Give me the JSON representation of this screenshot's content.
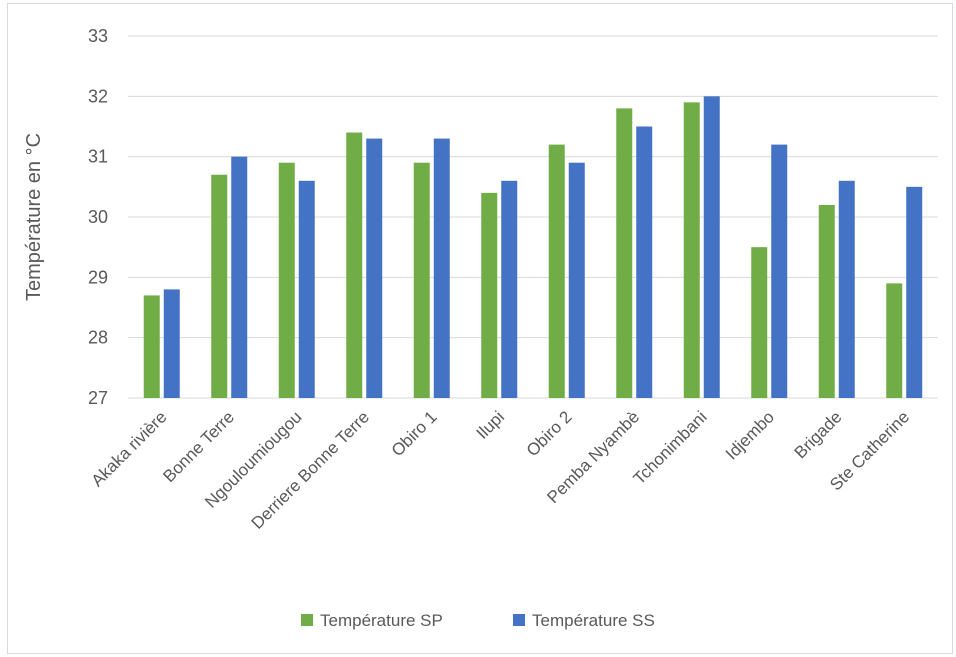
{
  "chart_data": {
    "type": "bar",
    "title": "",
    "xlabel": "",
    "ylabel": "Température en °C",
    "ylim": [
      27,
      33
    ],
    "yticks": [
      27,
      28,
      29,
      30,
      31,
      32,
      33
    ],
    "grid": true,
    "legend_position": "bottom",
    "categories": [
      "Akaka rivière",
      "Bonne Terre",
      "Ngouloumiougou",
      "Derriere Bonne Terre",
      "Obiro 1",
      "Ilupi",
      "Obiro 2",
      "Pemba Nyambè",
      "Tchonimbani",
      "Idjembo",
      "Brigade",
      "Ste Catherine"
    ],
    "series": [
      {
        "name": "Température SP",
        "color": "#70ad47",
        "values": [
          28.7,
          30.7,
          30.9,
          31.4,
          30.9,
          30.4,
          31.2,
          31.8,
          31.9,
          29.5,
          30.2,
          28.9
        ]
      },
      {
        "name": "Température SS",
        "color": "#4472c4",
        "values": [
          28.8,
          31.0,
          30.6,
          31.3,
          31.3,
          30.6,
          30.9,
          31.5,
          32.0,
          31.2,
          30.6,
          30.5
        ]
      }
    ]
  }
}
